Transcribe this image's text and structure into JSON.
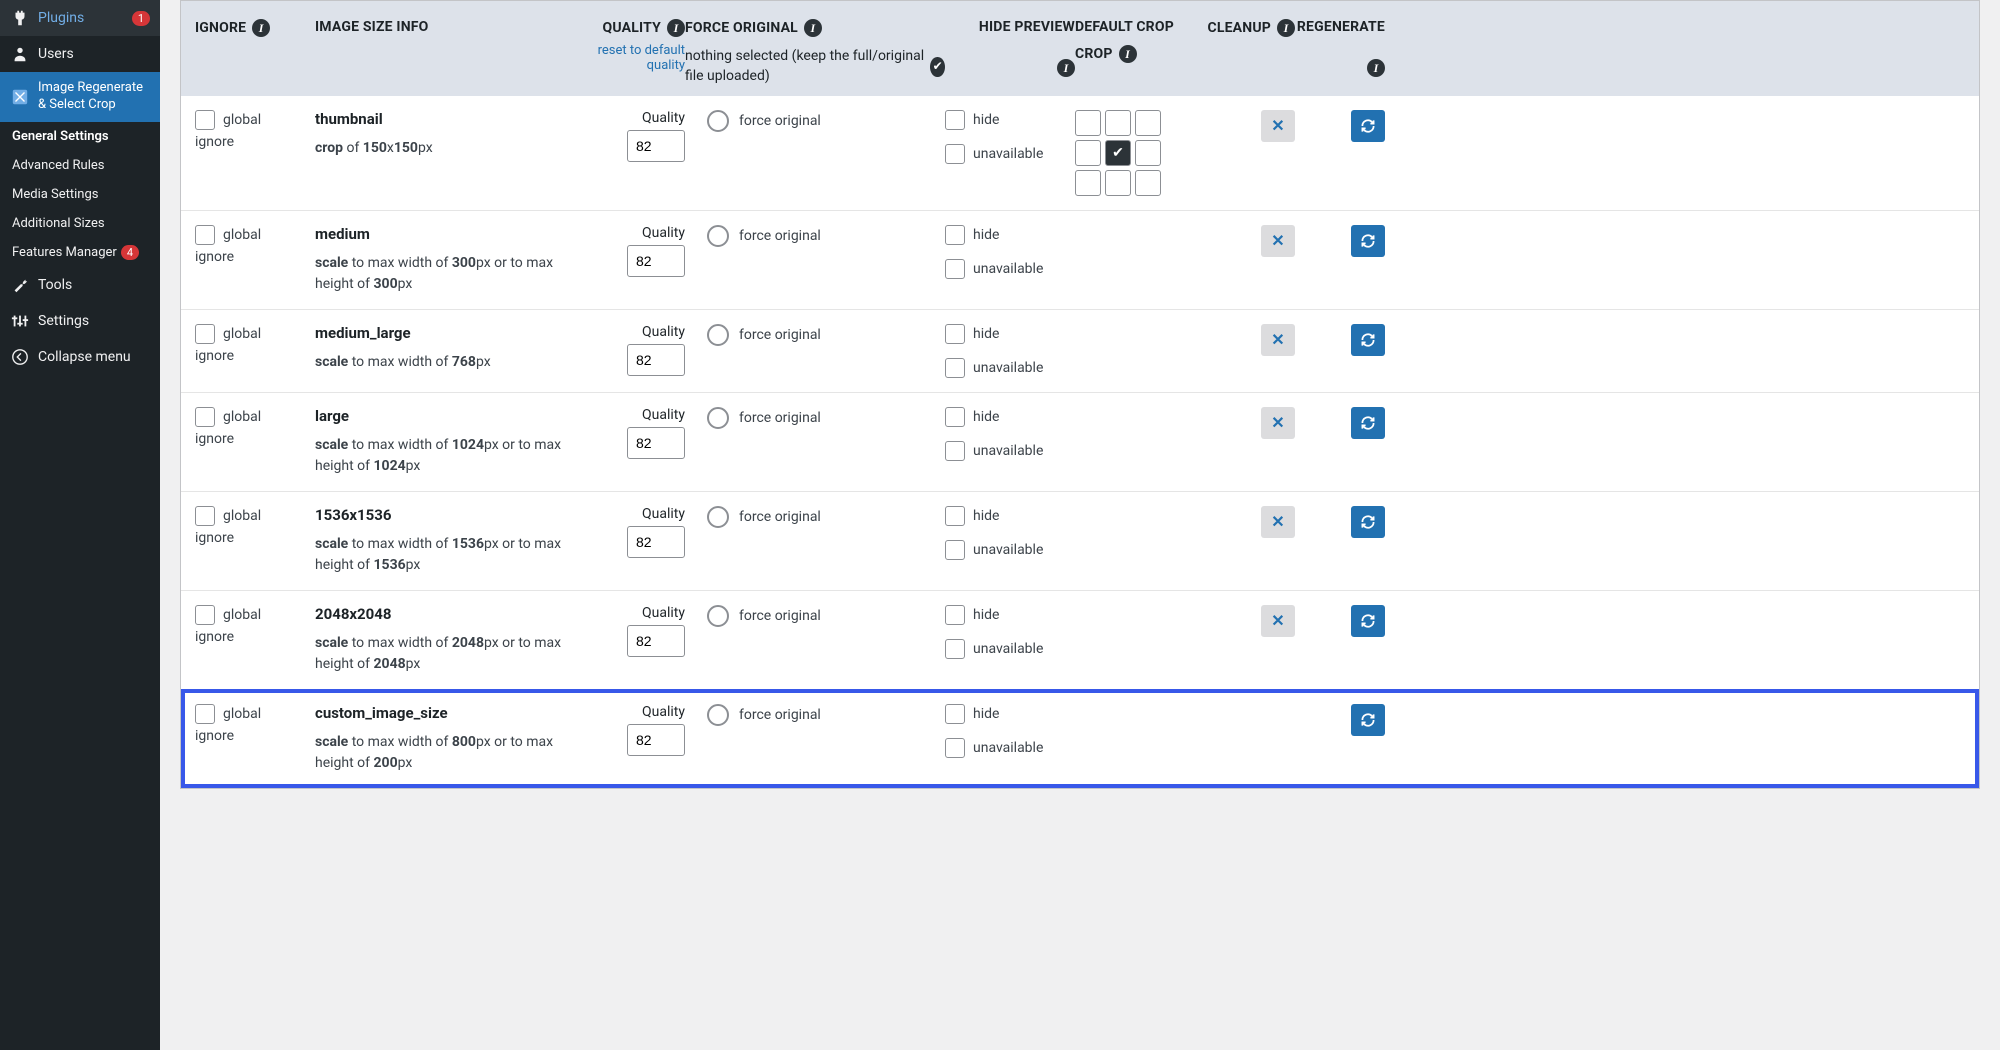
{
  "colors": {
    "sidebar_bg": "#1d2327",
    "accent": "#2271b1",
    "highlight": "#3858e9",
    "header_bg": "#dde2ea",
    "badge": "#d63638"
  },
  "sidebar": {
    "items": [
      {
        "icon": "plugins",
        "label": "Plugins",
        "badge": "1"
      },
      {
        "icon": "users",
        "label": "Users"
      },
      {
        "icon": "crop",
        "label": "Image Regenerate & Select Crop",
        "active": true
      }
    ],
    "submenu": [
      {
        "label": "General Settings",
        "current": true
      },
      {
        "label": "Advanced Rules"
      },
      {
        "label": "Media Settings"
      },
      {
        "label": "Additional Sizes"
      },
      {
        "label": "Features Manager",
        "badge": "4"
      }
    ],
    "after": [
      {
        "icon": "tools",
        "label": "Tools"
      },
      {
        "icon": "settings",
        "label": "Settings"
      },
      {
        "icon": "collapse",
        "label": "Collapse menu"
      }
    ]
  },
  "table": {
    "headers": {
      "ignore": "IGNORE",
      "info": "IMAGE SIZE INFO",
      "quality": "QUALITY",
      "quality_reset": "reset to default quality",
      "force": "FORCE ORIGINAL",
      "force_sub": "nothing selected (keep the full/original file uploaded)",
      "hide": "HIDE PREVIEW",
      "crop": "DEFAULT CROP",
      "cleanup": "CLEANUP",
      "regen": "REGENERATE"
    },
    "labels": {
      "global_ignore": "global ignore",
      "quality": "Quality",
      "force_original": "force original",
      "hide": "hide",
      "unavailable": "unavailable",
      "quality_value": "82"
    },
    "rows": [
      {
        "name": "thumbnail",
        "desc_html": "<b>crop</b> of <b>150</b>x<b>150</b>px",
        "show_crop_grid": true,
        "crop_selected": 4,
        "cleanup": true,
        "highlight": false
      },
      {
        "name": "medium",
        "desc_html": "<b>scale</b> to max width of <b>300</b>px or to max height of <b>300</b>px",
        "show_crop_grid": false,
        "cleanup": true,
        "highlight": false
      },
      {
        "name": "medium_large",
        "desc_html": "<b>scale</b> to max width of <b>768</b>px",
        "show_crop_grid": false,
        "cleanup": true,
        "highlight": false
      },
      {
        "name": "large",
        "desc_html": "<b>scale</b> to max width of <b>1024</b>px or to max height of <b>1024</b>px",
        "show_crop_grid": false,
        "cleanup": true,
        "highlight": false
      },
      {
        "name": "1536x1536",
        "desc_html": "<b>scale</b> to max width of <b>1536</b>px or to max height of <b>1536</b>px",
        "show_crop_grid": false,
        "cleanup": true,
        "highlight": false
      },
      {
        "name": "2048x2048",
        "desc_html": "<b>scale</b> to max width of <b>2048</b>px or to max height of <b>2048</b>px",
        "show_crop_grid": false,
        "cleanup": true,
        "highlight": false
      },
      {
        "name": "custom_image_size",
        "desc_html": "<b>scale</b> to max width of <b>800</b>px or to max height of <b>200</b>px",
        "show_crop_grid": false,
        "cleanup": false,
        "highlight": true
      }
    ]
  }
}
